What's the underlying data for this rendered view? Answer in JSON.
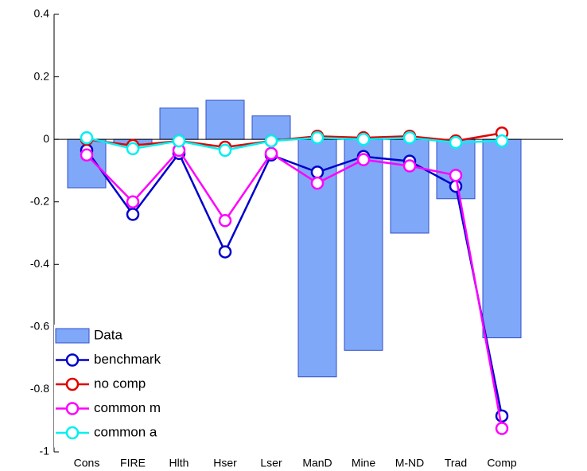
{
  "chart_data": {
    "type": "bar",
    "categories": [
      "Cons",
      "FIRE",
      "Hlth",
      "Hser",
      "Lser",
      "ManD",
      "Mine",
      "M-ND",
      "Trad",
      "Comp"
    ],
    "series": [
      {
        "name": "Data",
        "type": "bar",
        "color": "#80a8f8",
        "values": [
          -0.155,
          -0.015,
          0.1,
          0.125,
          0.075,
          -0.76,
          -0.675,
          -0.3,
          -0.19,
          -0.635
        ]
      },
      {
        "name": "benchmark",
        "type": "line",
        "color": "#0000cc",
        "values": [
          -0.035,
          -0.24,
          -0.045,
          -0.36,
          -0.05,
          -0.105,
          -0.055,
          -0.07,
          -0.15,
          -0.885
        ]
      },
      {
        "name": "no comp",
        "type": "line",
        "color": "#e00000",
        "values": [
          0,
          -0.02,
          -0.005,
          -0.025,
          -0.005,
          0.01,
          0.005,
          0.01,
          -0.005,
          0.02
        ]
      },
      {
        "name": "common m",
        "type": "line",
        "color": "#ff00ff",
        "values": [
          -0.05,
          -0.2,
          -0.035,
          -0.26,
          -0.045,
          -0.14,
          -0.065,
          -0.085,
          -0.115,
          -0.925
        ]
      },
      {
        "name": "common a",
        "type": "line",
        "color": "#00f0f0",
        "values": [
          0.005,
          -0.03,
          -0.005,
          -0.035,
          -0.005,
          0.005,
          0,
          0.005,
          -0.01,
          -0.005
        ]
      }
    ],
    "ylim": [
      -1,
      0.4
    ],
    "yticks": [
      -1,
      -0.8,
      -0.6,
      -0.4,
      -0.2,
      0,
      0.2,
      0.4
    ],
    "legend": "lower left"
  }
}
